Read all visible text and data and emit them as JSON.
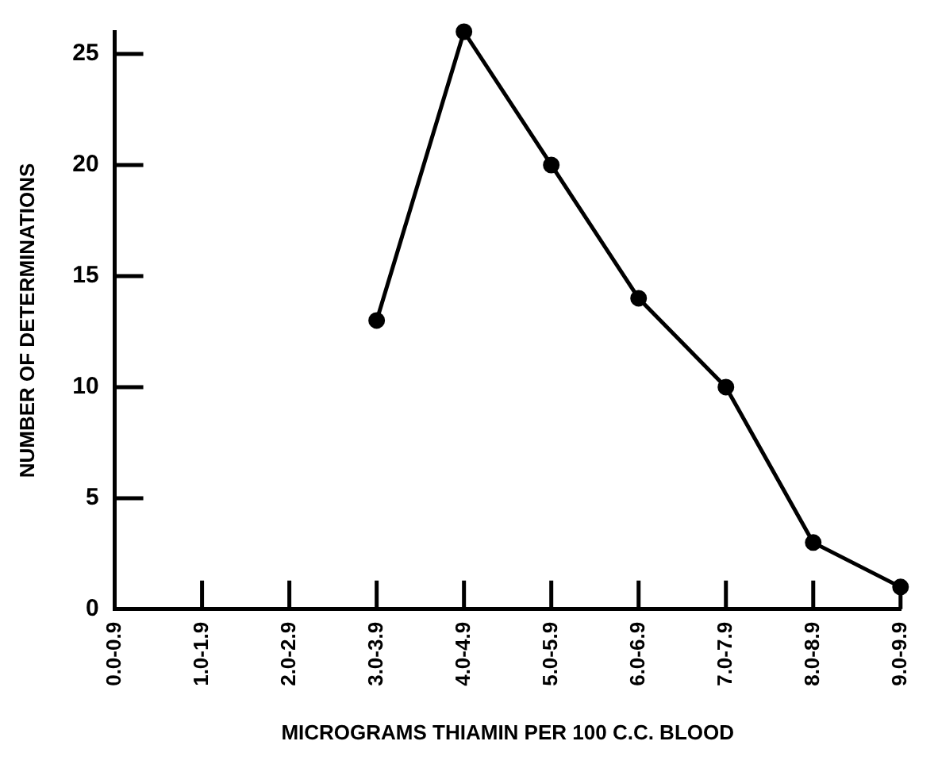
{
  "chart_data": {
    "type": "line",
    "xlabel": "MICROGRAMS THIAMIN PER 100 C.C. BLOOD",
    "ylabel": "NUMBER OF DETERMINATIONS",
    "categories": [
      "0.0-0.9",
      "1.0-1.9",
      "2.0-2.9",
      "3.0-3.9",
      "4.0-4.9",
      "5.0-5.9",
      "6.0-6.9",
      "7.0-7.9",
      "8.0-8.9",
      "9.0-9.9"
    ],
    "series": [
      {
        "color": "#000000",
        "values": [
          null,
          null,
          null,
          13,
          26,
          20,
          14,
          10,
          3,
          1
        ]
      }
    ],
    "ylim": [
      0,
      26
    ],
    "yticks": [
      0,
      5,
      10,
      15,
      20,
      25
    ],
    "grid": false,
    "legend": false,
    "marker": "circle",
    "line_style": "solid"
  }
}
